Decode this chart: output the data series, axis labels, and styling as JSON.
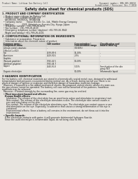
{
  "bg_color": "#f0ede8",
  "page_bg": "#e8e5e0",
  "header_left": "Product Name: Lithium Ion Battery Cell",
  "header_right_line1": "Document number: SRN-049-00010",
  "header_right_line2": "Established / Revision: Dec.7.2010",
  "title": "Safety data sheet for chemical products (SDS)",
  "section1_title": "1. PRODUCT AND COMPANY IDENTIFICATION",
  "section1_lines": [
    "  • Product name: Lithium Ion Battery Cell",
    "  • Product code: Cylindrical-type cell",
    "    SR18650U, SR18650L, SR18650A",
    "  • Company name:      Sanyo Electric Co., Ltd., Mobile Energy Company",
    "  • Address:           2001, Kamitokura, Sumoto-City, Hyogo, Japan",
    "  • Telephone number:  +81-799-26-4111",
    "  • Fax number:  +81-799-26-4129",
    "  • Emergency telephone number (daytime) +81-799-26-3842",
    "    (Night and holiday) +81-799-26-4101"
  ],
  "section2_title": "2. COMPOSITIONAL INFORMATION ON INGREDIENTS",
  "section2_intro": "  • Substance or preparation: Preparation",
  "section2_sub": "  • Information about the chemical nature of product:",
  "table_col_headers1": [
    "Common name /",
    "CAS number",
    "Concentration /",
    "Classification and"
  ],
  "table_col_headers2": [
    "Component name",
    "",
    "Concentration range",
    "hazard labeling"
  ],
  "table_rows": [
    [
      "Lithium nickel cobaltate",
      "-",
      "(30-60%)",
      ""
    ],
    [
      "(LiNixCo(1-x)O2)",
      "",
      "",
      ""
    ],
    [
      "Iron",
      "7439-89-6",
      "15-20%",
      "-"
    ],
    [
      "Aluminium",
      "7429-90-5",
      "2-5%",
      "-"
    ],
    [
      "Graphite",
      "",
      "",
      ""
    ],
    [
      "(Natural graphite)",
      "7782-42-5",
      "10-20%",
      "-"
    ],
    [
      "(Artificial graphite)",
      "7782-44-7",
      "",
      ""
    ],
    [
      "Copper",
      "7440-50-8",
      "5-15%",
      "Sensitization of the skin\ngroup R43"
    ],
    [
      "Organic electrolyte",
      "-",
      "10-20%",
      "Inflammable liquid"
    ]
  ],
  "section3_title": "3 HAZARDS IDENTIFICATION",
  "section3_lines": [
    "For the battery cell, chemical materials are stored in a hermetically sealed metal case, designed to withstand",
    "temperatures and pressures encountered during normal use. As a result, during normal use, there is no",
    "physical danger of ignition or explosion and therefore danger of hazardous materials leakage.",
    "  However, if exposed to a fire added mechanical shocks, decomposed, violent electric whose dry state use,",
    "the gas release cannot be operated. The battery cell case will be breached of fire-patterns, hazardous",
    "materials may be released.",
    "  Moreover, if heated strongly by the surrounding fire, some gas may be emitted."
  ],
  "section3_bullet1": "  • Most important hazard and effects:",
  "section3_human": "    Human health effects:",
  "section3_sub_lines": [
    "      Inhalation: The release of the electrolyte has an anesthesia action and stimulates in respiratory tract.",
    "      Skin contact: The release of the electrolyte stimulates a skin. The electrolyte skin contact causes a",
    "      sore and stimulation on the skin.",
    "      Eye contact: The release of the electrolyte stimulates eyes. The electrolyte eye contact causes a sore",
    "      and stimulation on the eye. Especially, a substance that causes a strong inflammation of the eye is",
    "      contained.",
    "      Environmental effects: Since a battery cell remains in the environment, do not throw out it into the",
    "      environment."
  ],
  "section3_specific": "  • Specific hazards:",
  "section3_spec_lines": [
    "    If the electrolyte contacts with water, it will generate detrimental hydrogen fluoride.",
    "    Since the used electrolyte is inflammable liquid, do not bring close to fire."
  ],
  "text_color": "#1a1a1a",
  "header_color": "#444444",
  "line_color": "#999999",
  "table_border_color": "#bbbbbb",
  "table_header_bg": "#d8d5d0",
  "table_row_bg1": "#e8e5e0",
  "table_row_bg2": "#f0ede8"
}
